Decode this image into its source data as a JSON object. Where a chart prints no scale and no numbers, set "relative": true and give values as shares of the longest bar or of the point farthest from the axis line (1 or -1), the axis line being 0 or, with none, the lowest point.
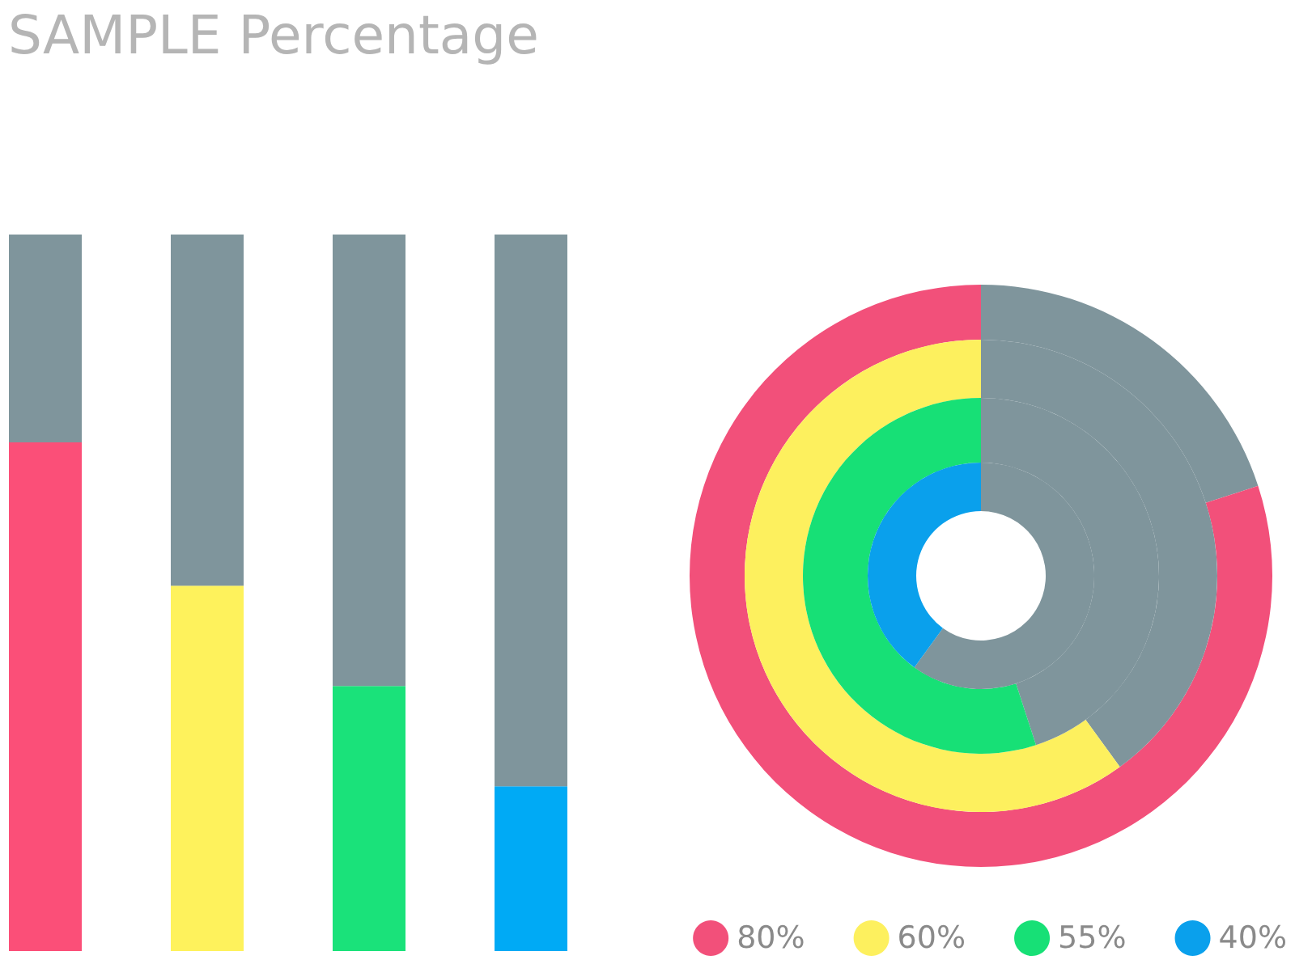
{
  "chart_data": [
    {
      "type": "bar",
      "title": "SAMPLE Percentage",
      "relative": true,
      "stacked": true,
      "categories": [
        null,
        null,
        null,
        null
      ],
      "series": [
        {
          "colors": [
            "#fb4f78",
            "#fef25c",
            "#1ae27a",
            "#00aaf5"
          ],
          "values": [
            0.71,
            0.51,
            0.37,
            0.23
          ]
        },
        {
          "color": "#7f959c",
          "values": [
            0.29,
            0.49,
            0.63,
            0.77
          ]
        }
      ]
    },
    {
      "type": "donut",
      "categories": [
        null,
        null
      ],
      "legend": "bottom right",
      "series": [
        {
          "name": "80%",
          "colors": [
            "#7f959c",
            "#f2507a"
          ],
          "values": [
            20,
            80
          ]
        },
        {
          "name": "60%",
          "colors": [
            "#7f959c",
            "#fdf05e"
          ],
          "values": [
            40,
            60
          ]
        },
        {
          "name": "55%",
          "colors": [
            "#7f959c",
            "#17e076"
          ],
          "values": [
            45,
            55
          ]
        },
        {
          "name": "40%",
          "colors": [
            "#7f959c",
            "#0aa0ec"
          ],
          "values": [
            60,
            40
          ]
        }
      ]
    }
  ]
}
